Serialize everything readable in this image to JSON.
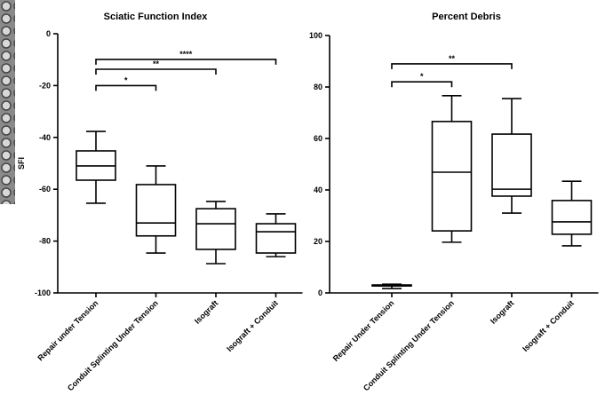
{
  "chart_data": [
    {
      "type": "box",
      "title": "Sciatic Function Index",
      "y_label": "SFI",
      "color": "#000000",
      "categories": [
        "Repair under Tension",
        "Conduit Splinting Under Tension",
        "Isograft",
        "Isograft + Conduit"
      ],
      "min": [
        -65.4,
        -84.6,
        -88.7,
        -86
      ],
      "q1": [
        -56.5,
        -78,
        -83.2,
        -84.6
      ],
      "median": [
        -51,
        -73,
        -73.3,
        -76.4
      ],
      "q3": [
        -45.2,
        -58.2,
        -67.5,
        -73.3
      ],
      "max": [
        -37.7,
        -51,
        -64.7,
        -69.5
      ],
      "ylim": [
        -100,
        0
      ],
      "yticks": [
        0,
        -20,
        -40,
        -60,
        -80,
        -100
      ],
      "annotations": [
        {
          "text": "*",
          "from": 0,
          "to": 1,
          "y": -20
        },
        {
          "text": "**",
          "from": 0,
          "to": 2,
          "y": -13.7
        },
        {
          "text": "****",
          "from": 0,
          "to": 3,
          "y": -9.9
        }
      ]
    },
    {
      "type": "box",
      "title": "Percent Debris",
      "color": "#000000",
      "categories": [
        "Repair Under Tension",
        "Conduit Splinting Under Tension",
        "Isograft",
        "Isograft + Conduit"
      ],
      "min": [
        1.7,
        19.7,
        31,
        18.3
      ],
      "q1": [
        2.7,
        24.1,
        37.6,
        22.8
      ],
      "median": [
        2.9,
        46.9,
        40.3,
        27.6
      ],
      "q3": [
        3.1,
        66.6,
        61.7,
        35.9
      ],
      "max": [
        3.4,
        76.6,
        75.5,
        43.4
      ],
      "ylim": [
        0,
        100
      ],
      "yticks": [
        0,
        20,
        40,
        60,
        80,
        100
      ],
      "annotations": [
        {
          "text": "*",
          "from": 0,
          "to": 1,
          "y": 82
        },
        {
          "text": "**",
          "from": 0,
          "to": 2,
          "y": 89
        }
      ]
    }
  ]
}
